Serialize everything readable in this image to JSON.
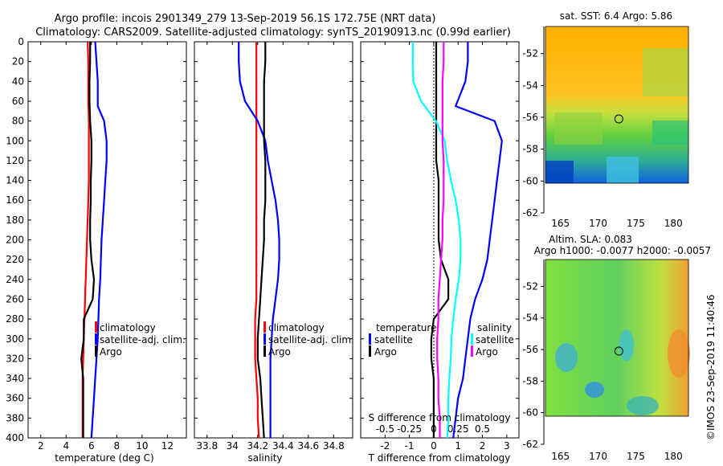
{
  "title": {
    "line1": "Argo profile: incois 2901349_279 13-Sep-2019 56.1S 172.75E (NRT data)",
    "line2": "Climatology: CARS2009. Satellite-adjusted climatology: synTS_20190913.nc (0.99d earlier)"
  },
  "footer": "©IMOS 23-Sep-2019 11:40:46",
  "colors": {
    "climatology": "#ff0000",
    "satellite": "#0000ff",
    "argo": "#000000",
    "salinity_satellite": "#00ffff",
    "salinity_argo": "#ff00ff"
  },
  "chart_data": [
    {
      "type": "line",
      "title": "",
      "xlabel": "temperature (deg C)",
      "ylabel": "",
      "xlim": [
        1,
        13.5
      ],
      "ylim": [
        400,
        0
      ],
      "xticks": [
        "2",
        "4",
        "6",
        "8",
        "10",
        "12"
      ],
      "yticks": [
        "0",
        "20",
        "40",
        "60",
        "80",
        "100",
        "120",
        "140",
        "160",
        "180",
        "200",
        "220",
        "240",
        "260",
        "280",
        "300",
        "320",
        "340",
        "360",
        "380",
        "400"
      ],
      "legend": [
        "climatology",
        "satellite-adj. clim.",
        "Argo"
      ],
      "legend_position": "lower-right",
      "series": [
        {
          "name": "climatology",
          "x": [
            5.7,
            5.75,
            5.75,
            5.75,
            5.8,
            5.8,
            5.8,
            5.8,
            5.75,
            5.7,
            5.65,
            5.6,
            5.55,
            5.5,
            5.45,
            5.4,
            5.35,
            5.3,
            5.3,
            5.3,
            5.3
          ],
          "y": [
            0,
            20,
            40,
            60,
            80,
            100,
            120,
            140,
            160,
            180,
            200,
            220,
            240,
            260,
            280,
            300,
            320,
            340,
            360,
            380,
            400
          ]
        },
        {
          "name": "satellite-adj. clim.",
          "x": [
            6.3,
            6.4,
            6.5,
            6.5,
            7.0,
            7.2,
            7.2,
            7.1,
            7.0,
            6.9,
            6.8,
            6.75,
            6.7,
            6.6,
            6.55,
            6.5,
            6.4,
            6.3,
            6.2,
            6.1,
            6.0
          ],
          "y": [
            0,
            20,
            40,
            65,
            80,
            100,
            120,
            140,
            160,
            180,
            200,
            220,
            240,
            260,
            280,
            300,
            320,
            340,
            360,
            380,
            400
          ]
        },
        {
          "name": "Argo",
          "x": [
            5.9,
            5.9,
            5.85,
            5.85,
            5.9,
            6.0,
            6.0,
            5.95,
            5.95,
            5.9,
            5.9,
            6.0,
            6.2,
            6.1,
            5.4,
            5.4,
            5.2,
            5.35,
            5.35,
            5.35,
            5.35
          ],
          "y": [
            0,
            20,
            40,
            60,
            80,
            100,
            120,
            140,
            160,
            180,
            200,
            220,
            240,
            260,
            280,
            300,
            320,
            340,
            360,
            380,
            400
          ]
        }
      ]
    },
    {
      "type": "line",
      "xlabel": "salinity",
      "xlim": [
        33.7,
        34.95
      ],
      "ylim": [
        400,
        0
      ],
      "xticks": [
        "33.8",
        "34",
        "34.2",
        "34.4",
        "34.6",
        "34.8"
      ],
      "legend": [
        "climatology",
        "satellite-adj. clim.",
        "Argo"
      ],
      "legend_position": "lower-right",
      "series": [
        {
          "name": "climatology",
          "x": [
            34.19,
            34.19,
            34.19,
            34.19,
            34.19,
            34.19,
            34.19,
            34.19,
            34.19,
            34.19,
            34.19,
            34.19,
            34.19,
            34.19,
            34.18,
            34.18,
            34.18,
            34.19,
            34.2,
            34.2,
            34.21
          ],
          "y": [
            0,
            20,
            40,
            60,
            80,
            100,
            120,
            140,
            160,
            180,
            200,
            220,
            240,
            260,
            280,
            300,
            320,
            340,
            360,
            380,
            400
          ]
        },
        {
          "name": "satellite-adj. clim.",
          "x": [
            34.05,
            34.05,
            34.06,
            34.1,
            34.2,
            34.26,
            34.28,
            34.31,
            34.34,
            34.36,
            34.37,
            34.37,
            34.36,
            34.34,
            34.32,
            34.31,
            34.3,
            34.3,
            34.3,
            34.3,
            34.3
          ],
          "y": [
            0,
            20,
            40,
            60,
            80,
            100,
            120,
            140,
            160,
            180,
            200,
            220,
            240,
            260,
            280,
            300,
            320,
            340,
            360,
            380,
            400
          ]
        },
        {
          "name": "Argo",
          "x": [
            34.26,
            34.26,
            34.25,
            34.25,
            34.25,
            34.25,
            34.26,
            34.26,
            34.26,
            34.25,
            34.25,
            34.24,
            34.23,
            34.22,
            34.21,
            34.2,
            34.2,
            34.22,
            34.23,
            34.24,
            34.25
          ],
          "y": [
            0,
            20,
            40,
            60,
            80,
            100,
            120,
            140,
            160,
            180,
            200,
            220,
            240,
            260,
            280,
            300,
            320,
            340,
            360,
            380,
            400
          ]
        }
      ]
    },
    {
      "type": "line",
      "xlabel": "T difference from climatology",
      "xlabel_top": "S difference from climatology",
      "xlim": [
        -3,
        3.5
      ],
      "ylim": [
        400,
        0
      ],
      "xticks": [
        "-2",
        "-1",
        "0",
        "1",
        "2",
        "3"
      ],
      "xticks_top": [
        "-0.5",
        "-0.25",
        "0",
        "0.25",
        "0.5"
      ],
      "legend_temperature": {
        "header": "temperature",
        "items": [
          "satellite",
          "Argo"
        ]
      },
      "legend_salinity": {
        "header": "salinity",
        "items": [
          "satellite",
          "Argo"
        ]
      },
      "series": [
        {
          "name": "temperature satellite",
          "x": [
            1.4,
            1.4,
            1.3,
            0.9,
            2.5,
            2.8,
            2.7,
            2.6,
            2.5,
            2.4,
            2.3,
            2.2,
            2.0,
            1.7,
            1.5,
            1.4,
            1.3,
            1.2,
            1.0,
            0.9,
            0.8
          ],
          "y": [
            0,
            20,
            40,
            65,
            80,
            100,
            120,
            140,
            160,
            180,
            200,
            220,
            240,
            260,
            280,
            300,
            320,
            340,
            360,
            380,
            400
          ]
        },
        {
          "name": "temperature Argo",
          "x": [
            0.1,
            0.1,
            0.1,
            0.1,
            0.1,
            0.1,
            0.1,
            0.2,
            0.2,
            0.2,
            0.2,
            0.3,
            0.6,
            0.6,
            0.0,
            -0.1,
            -0.1,
            0.0,
            0.0,
            0.0,
            0.0
          ],
          "y": [
            0,
            20,
            40,
            60,
            80,
            100,
            120,
            140,
            160,
            180,
            200,
            220,
            240,
            260,
            280,
            300,
            320,
            340,
            360,
            380,
            400
          ]
        },
        {
          "name": "salinity satellite",
          "x": [
            -0.86,
            -0.86,
            -0.84,
            -0.52,
            0.09,
            0.45,
            0.55,
            0.71,
            0.9,
            1.03,
            1.1,
            1.1,
            1.03,
            0.9,
            0.8,
            0.73,
            0.7,
            0.64,
            0.6,
            0.6,
            0.55
          ],
          "y": [
            0,
            20,
            40,
            60,
            80,
            100,
            120,
            140,
            160,
            180,
            200,
            220,
            240,
            260,
            280,
            300,
            320,
            340,
            360,
            380,
            400
          ]
        },
        {
          "name": "salinity Argo",
          "x": [
            0.41,
            0.41,
            0.36,
            0.36,
            0.36,
            0.36,
            0.41,
            0.41,
            0.41,
            0.36,
            0.36,
            0.3,
            0.25,
            0.19,
            0.19,
            0.14,
            0.14,
            0.19,
            0.19,
            0.25,
            0.25
          ],
          "y": [
            0,
            20,
            40,
            60,
            80,
            100,
            120,
            140,
            160,
            180,
            200,
            220,
            240,
            260,
            280,
            300,
            320,
            340,
            360,
            380,
            400
          ]
        }
      ]
    },
    {
      "type": "heatmap",
      "title": "sat. SST: 6.4 Argo: 5.86",
      "xlim": [
        163,
        182
      ],
      "ylim": [
        -62,
        -50
      ],
      "xticks": [
        "165",
        "170",
        "175",
        "180"
      ],
      "yticks": [
        "-52",
        "-54",
        "-56",
        "-58",
        "-60",
        "-62"
      ],
      "argo_position": {
        "lon": 172.75,
        "lat": -56.1
      }
    },
    {
      "type": "heatmap",
      "title": "Altim. SLA: 0.083",
      "subtitle": "Argo h1000: -0.0077 h2000: -0.0057",
      "xlim": [
        163,
        182
      ],
      "ylim": [
        -62,
        -50
      ],
      "xticks": [
        "165",
        "170",
        "175",
        "180"
      ],
      "yticks": [
        "-52",
        "-54",
        "-56",
        "-58",
        "-60",
        "-62"
      ],
      "argo_position": {
        "lon": 172.75,
        "lat": -56.1
      }
    }
  ]
}
